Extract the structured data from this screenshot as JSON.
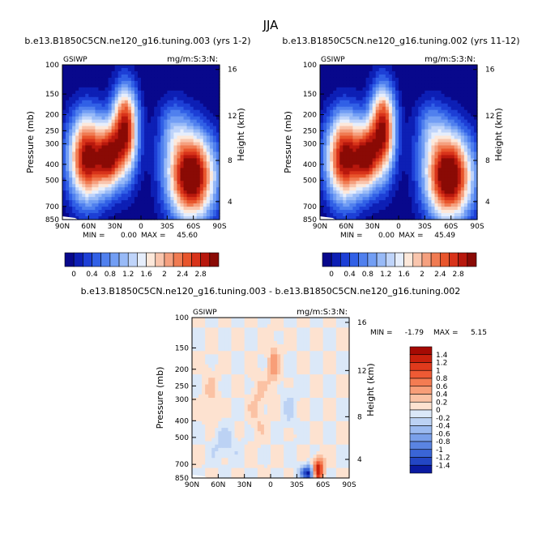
{
  "chart_data": {
    "type": "heatmap",
    "season": "JJA",
    "panels": [
      {
        "id": "top-left",
        "title": "b.e13.B1850C5CN.ne120_g16.tuning.003 (yrs 1-2)",
        "left_label": "GSIWP",
        "right_label": "mg/m:S:3:N:",
        "xlabel": "",
        "ylabel": "Pressure (mb)",
        "y2label": "Height (km)",
        "x_ticks": [
          "90N",
          "60N",
          "30N",
          "0",
          "30S",
          "60S",
          "90S"
        ],
        "y_ticks": [
          "100",
          "150",
          "200",
          "250",
          "300",
          "400",
          "500",
          "700",
          "850"
        ],
        "y2_ticks": [
          "16",
          "12",
          "8",
          "4"
        ],
        "min_label": "MIN =",
        "min": "0.00",
        "max_label": "MAX =",
        "max": "45.60",
        "field": "full"
      },
      {
        "id": "top-right",
        "title": "b.e13.B1850C5CN.ne120_g16.tuning.002 (yrs 11-12)",
        "left_label": "GSIWP",
        "right_label": "mg/m:S:3:N:",
        "xlabel": "",
        "ylabel": "Pressure (mb)",
        "y2label": "Height (km)",
        "x_ticks": [
          "90N",
          "60N",
          "30N",
          "0",
          "30S",
          "60S",
          "90S"
        ],
        "y_ticks": [
          "100",
          "150",
          "200",
          "250",
          "300",
          "400",
          "500",
          "700",
          "850"
        ],
        "y2_ticks": [
          "16",
          "12",
          "8",
          "4"
        ],
        "min_label": "MIN =",
        "min": "0.00",
        "max_label": "MAX =",
        "max": "45.49",
        "field": "full"
      },
      {
        "id": "bottom",
        "title": "b.e13.B1850C5CN.ne120_g16.tuning.003 - b.e13.B1850C5CN.ne120_g16.tuning.002",
        "left_label": "GSIWP",
        "right_label": "mg/m:S:3:N:",
        "xlabel": "",
        "ylabel": "Pressure (mb)",
        "y2label": "Height (km)",
        "x_ticks": [
          "90N",
          "60N",
          "30N",
          "0",
          "30S",
          "60S",
          "90S"
        ],
        "y_ticks": [
          "100",
          "150",
          "200",
          "250",
          "300",
          "400",
          "500",
          "700",
          "850"
        ],
        "y2_ticks": [
          "16",
          "12",
          "8",
          "4"
        ],
        "min_label": "MIN =",
        "min": "-1.79",
        "max_label": "MAX =",
        "max": "5.15",
        "field": "diff"
      }
    ],
    "colorbar_full": {
      "labels": [
        "0",
        "0.4",
        "0.8",
        "1.2",
        "1.6",
        "2",
        "2.4",
        "2.8"
      ],
      "colors": [
        "#08088c",
        "#0d1fb5",
        "#1d3fd6",
        "#3160e6",
        "#5080ee",
        "#729ef4",
        "#98baf7",
        "#bfd4fa",
        "#e6eefc",
        "#fde8da",
        "#f9c5ad",
        "#f5a07f",
        "#f07b52",
        "#e8552c",
        "#d8331a",
        "#b8180d",
        "#8a0a05"
      ]
    },
    "colorbar_diff": {
      "labels": [
        "1.4",
        "1.2",
        "1",
        "0.8",
        "0.6",
        "0.4",
        "0.2",
        "0",
        "-0.2",
        "-0.4",
        "-0.6",
        "-0.8",
        "-1",
        "-1.2",
        "-1.4"
      ],
      "colors": [
        "#a50a03",
        "#c8200c",
        "#e03a1c",
        "#ee5a34",
        "#f47c52",
        "#f89e78",
        "#fbc2a4",
        "#fde2d0",
        "#dbe8f8",
        "#bcd2f4",
        "#9bbaf0",
        "#7aa0ea",
        "#5a84e2",
        "#3a65d6",
        "#2346c4",
        "#0a1aa0"
      ]
    }
  }
}
